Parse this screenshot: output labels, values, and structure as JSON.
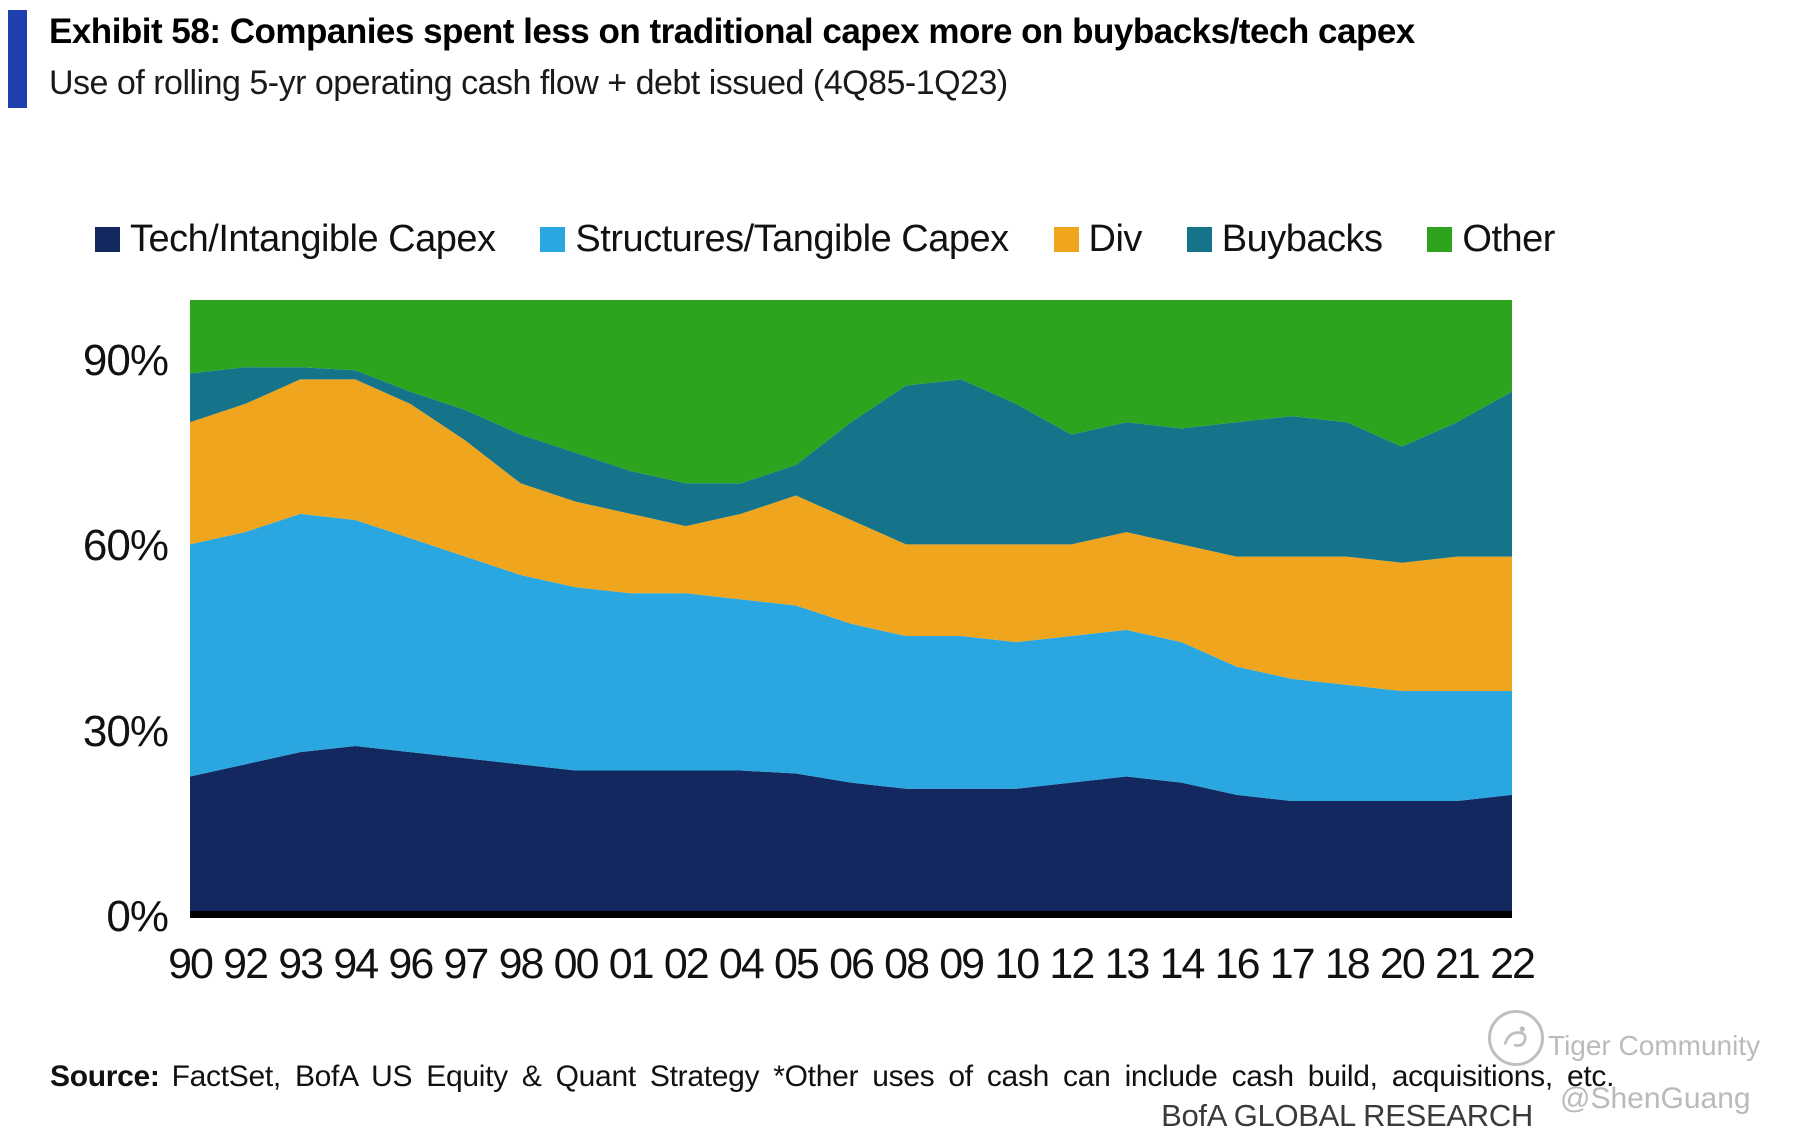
{
  "header": {
    "title": "Exhibit 58: Companies spent less on traditional capex more on buybacks/tech capex",
    "subtitle": "Use of rolling 5-yr operating cash flow + debt issued (4Q85-1Q23)",
    "accent_color": "#1e3fae"
  },
  "chart_data": {
    "type": "area",
    "stacked": true,
    "percent_of_total": true,
    "title": "Use of rolling 5-yr operating cash flow + debt issued",
    "period": "4Q85-1Q23",
    "categories": [
      "90",
      "92",
      "93",
      "94",
      "96",
      "97",
      "98",
      "00",
      "01",
      "02",
      "04",
      "05",
      "06",
      "08",
      "09",
      "10",
      "12",
      "13",
      "14",
      "16",
      "17",
      "18",
      "20",
      "21",
      "22"
    ],
    "series": [
      {
        "name": "Tech/Intangible Capex",
        "color": "#12285f",
        "values": [
          22,
          24,
          26,
          27,
          26,
          25,
          24,
          23,
          23,
          23,
          23,
          22.5,
          21,
          20,
          20,
          20,
          21,
          22,
          21,
          19,
          18,
          18,
          18,
          18,
          19
        ]
      },
      {
        "name": "Structures/Tangible Capex",
        "color": "#2aa7e0",
        "values": [
          38,
          38,
          39,
          37,
          35,
          33,
          31,
          30,
          29,
          29,
          28,
          27.5,
          26,
          25,
          25,
          24,
          24,
          24,
          23,
          21,
          20,
          19,
          18,
          18,
          17
        ]
      },
      {
        "name": "Div",
        "color": "#efa51e",
        "values": [
          20,
          21,
          22,
          23,
          22,
          19,
          15,
          14,
          13,
          11,
          14,
          18,
          17,
          15,
          15,
          16,
          15,
          16,
          16,
          18,
          20,
          21,
          21,
          22,
          22
        ]
      },
      {
        "name": "Buybacks",
        "color": "#15748a",
        "values": [
          8,
          6,
          2,
          1.5,
          2,
          5,
          8,
          8,
          7,
          7,
          5,
          5,
          16,
          26,
          27,
          23,
          18,
          18,
          19,
          22,
          23,
          22,
          19,
          22,
          27
        ]
      },
      {
        "name": "Other",
        "color": "#2ea31e",
        "values": [
          12,
          11,
          11,
          11.5,
          15,
          18,
          22,
          25,
          28,
          30,
          30,
          27,
          20,
          14,
          13,
          17,
          22,
          20,
          21,
          20,
          19,
          20,
          24,
          20,
          15
        ]
      }
    ],
    "ylim": [
      0,
      100
    ],
    "y_ticks": [
      {
        "label": "0%",
        "value": 0
      },
      {
        "label": "30%",
        "value": 30
      },
      {
        "label": "60%",
        "value": 60
      },
      {
        "label": "90%",
        "value": 90
      }
    ],
    "legend_position": "top",
    "grid": false
  },
  "footer": {
    "source_label": "Source:",
    "source_text": "FactSet, BofA US Equity & Quant Strategy *Other uses of cash can include cash build, acquisitions,  etc.",
    "brand": "BofA GLOBAL RESEARCH"
  },
  "watermark": {
    "community": "Tiger Community",
    "handle": "@ShenGuang"
  }
}
